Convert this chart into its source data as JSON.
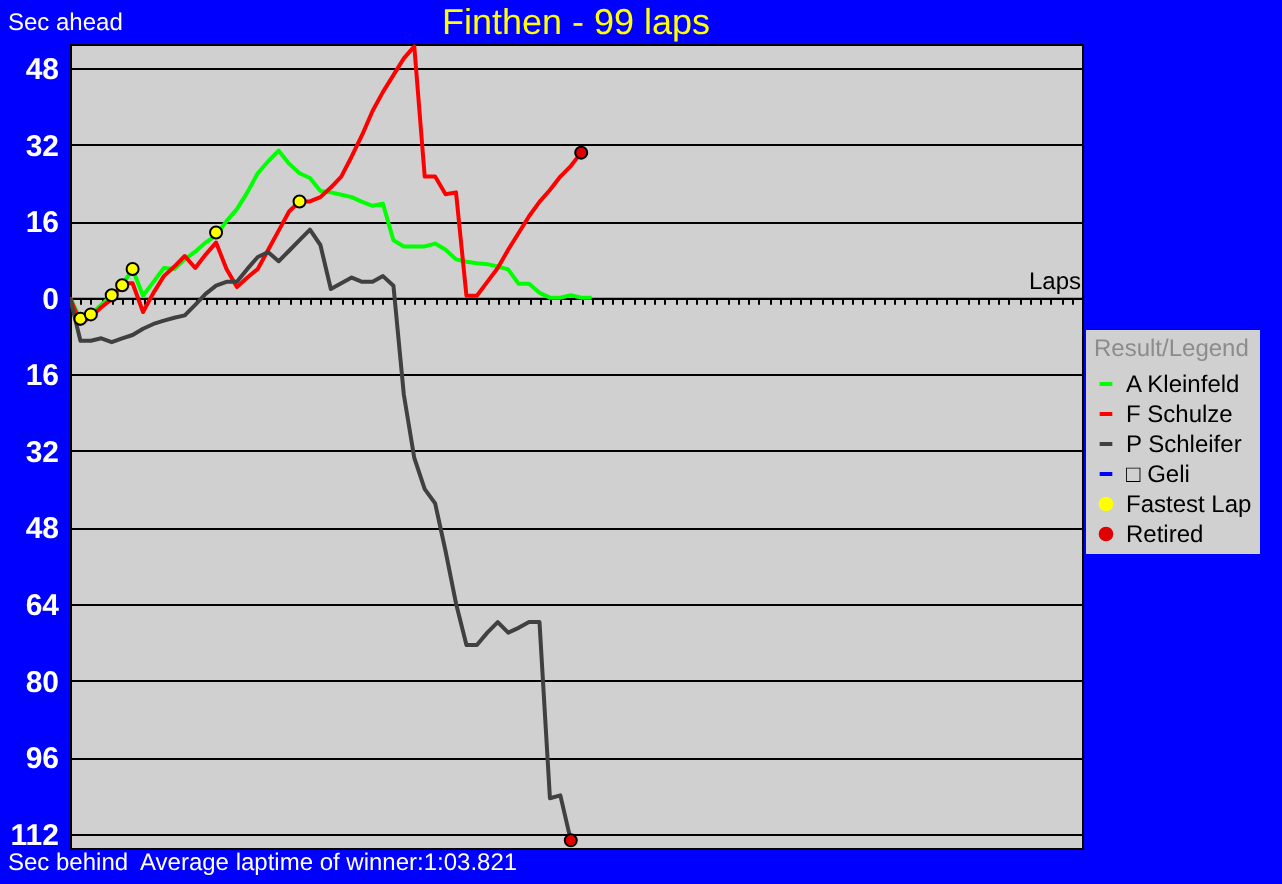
{
  "chart_data": {
    "type": "line",
    "title": "Finthen - 99 laps",
    "xlabel": "Laps",
    "legend_title": "Result/Legend",
    "legend": "right",
    "grid": "y",
    "tick_labels": "y",
    "line_style": "solid",
    "annotations": [
      "Sec ahead",
      "Sec behind",
      "Average laptime of winner:1:03.821"
    ],
    "categories": [
      null,
      null,
      null,
      null,
      null,
      null,
      null,
      null,
      null,
      null,
      null,
      null,
      null,
      null,
      null,
      null,
      null,
      null,
      null,
      null,
      null,
      null,
      null,
      null,
      null,
      null,
      null,
      null,
      null,
      null,
      null,
      null,
      null,
      null,
      null,
      null,
      null,
      null,
      null,
      null,
      null,
      null,
      null,
      null,
      null,
      null,
      null,
      null,
      null,
      null,
      null,
      null,
      null,
      null,
      null,
      null,
      null,
      null,
      null,
      null,
      null,
      null,
      null,
      null,
      null,
      null,
      null,
      null,
      null,
      null,
      null,
      null,
      null,
      null,
      null,
      null,
      null,
      null,
      null,
      null,
      null,
      null,
      null,
      null,
      null,
      null,
      null,
      null,
      null,
      null,
      null,
      null,
      null,
      null,
      null,
      null,
      null,
      null
    ],
    "ylim": [
      -115,
      53
    ],
    "yticks": [
      48,
      32,
      16,
      0,
      {
        "value": -16,
        "label": "16"
      },
      {
        "value": -32,
        "label": "32"
      },
      {
        "value": -48,
        "label": "48"
      },
      {
        "value": -64,
        "label": "64"
      },
      {
        "value": -80,
        "label": "80"
      },
      {
        "value": -96,
        "label": "96"
      },
      {
        "value": -112,
        "label": "112"
      }
    ],
    "series": [
      {
        "name": "A Kleinfeld",
        "color": "#00ff00",
        "values": [
          0,
          -4.5,
          -3.5,
          -1.5,
          0.5,
          2.6,
          6,
          0.4,
          3.3,
          6.2,
          6,
          8,
          9.6,
          11.5,
          13,
          16,
          18.5,
          22,
          26,
          28.5,
          30.7,
          28,
          26,
          25,
          22.3,
          22,
          21.5,
          21,
          20,
          19.2,
          19.6,
          12,
          10.7,
          10.7,
          10.7,
          11.3,
          10,
          8,
          7.5,
          7.2,
          7,
          6.5,
          5.9,
          2.9,
          2.9,
          1,
          0,
          0,
          0.5,
          0,
          0,
          null,
          null,
          null,
          null,
          null,
          null,
          null,
          null,
          null,
          null,
          null,
          null,
          null,
          null,
          null,
          null,
          null,
          null,
          null,
          null,
          null,
          null,
          null,
          null,
          null,
          null,
          null,
          null,
          null,
          null,
          null,
          null,
          null,
          null,
          null,
          null,
          null,
          null,
          null,
          null,
          null,
          null,
          null,
          null,
          null,
          null,
          null
        ]
      },
      {
        "name": "F Schulze",
        "color": "#ff0000",
        "values": [
          0,
          -5.5,
          -4,
          -2,
          -0.3,
          3,
          3,
          -3,
          1,
          4.5,
          6.5,
          8.7,
          6.2,
          9,
          11.5,
          6,
          2.2,
          4.2,
          6,
          10,
          14,
          18,
          20.1,
          20.1,
          21,
          23,
          25.3,
          29.5,
          34,
          39,
          43,
          46.5,
          50,
          52.5,
          25.3,
          25.3,
          21.6,
          22,
          0.4,
          0.4,
          3.3,
          6.2,
          10,
          13.5,
          17,
          20,
          22.5,
          25.3,
          27.5,
          30.3,
          null,
          null,
          null,
          null,
          null,
          null,
          null,
          null,
          null,
          null,
          null,
          null,
          null,
          null,
          null,
          null,
          null,
          null,
          null,
          null,
          null,
          null,
          null,
          null,
          null,
          null,
          null,
          null,
          null,
          null,
          null,
          null,
          null,
          null,
          null,
          null,
          null,
          null,
          null,
          null,
          null,
          null,
          null,
          null,
          null,
          null,
          null,
          null
        ]
      },
      {
        "name": "P Schleifer",
        "color": "#404040",
        "values": [
          0,
          -9,
          -9,
          -8.5,
          -9.3,
          -8.5,
          -7.8,
          -6.5,
          -5.5,
          -4.8,
          -4.2,
          -3.7,
          -1.5,
          0.8,
          2.5,
          3.3,
          3.3,
          6,
          8.5,
          9.5,
          7.6,
          9.8,
          12,
          14.2,
          11,
          1.8,
          3,
          4.2,
          3.3,
          3.3,
          4.5,
          2.5,
          -20.3,
          -33.5,
          -40,
          -43,
          -53,
          -63.9,
          -72.6,
          -72.6,
          -70,
          -67.8,
          -70,
          -69,
          -67.8,
          -67.8,
          -104.6,
          -104,
          -113.4,
          null,
          null,
          null,
          null,
          null,
          null,
          null,
          null,
          null,
          null,
          null,
          null,
          null,
          null,
          null,
          null,
          null,
          null,
          null,
          null,
          null,
          null,
          null,
          null,
          null,
          null,
          null,
          null,
          null,
          null,
          null,
          null,
          null,
          null,
          null,
          null,
          null,
          null,
          null,
          null,
          null,
          null,
          null,
          null,
          null,
          null,
          null,
          null,
          null
        ]
      },
      {
        "name": "□ Geli",
        "color": "#0000ff",
        "values": [
          null,
          null,
          null,
          null,
          null,
          null,
          null,
          null,
          null,
          null,
          null,
          null,
          null,
          null,
          null,
          null,
          null,
          null,
          null,
          null,
          null,
          null,
          null,
          null,
          null,
          null,
          null,
          null,
          null,
          null,
          null,
          null,
          null,
          null,
          null,
          null,
          null,
          null,
          null,
          null,
          null,
          null,
          null,
          null,
          null,
          null,
          null,
          null,
          null,
          null,
          null,
          null,
          null,
          null,
          null,
          null,
          null,
          null,
          null,
          null,
          null,
          null,
          null,
          null,
          null,
          null,
          null,
          null,
          null,
          null,
          null,
          null,
          null,
          null,
          null,
          null,
          null,
          null,
          null,
          null,
          null,
          null,
          null,
          null,
          null,
          null,
          null,
          null,
          null,
          null,
          null,
          null,
          null,
          null,
          null,
          null,
          null,
          null
        ]
      },
      {
        "name": "Fastest Lap",
        "color": "#ffff00",
        "type": "scatter",
        "marker": "circle",
        "values": [
          null,
          -4.4,
          -3.5,
          null,
          0.5,
          2.6,
          6,
          null,
          null,
          null,
          null,
          null,
          null,
          null,
          13.6,
          null,
          null,
          null,
          null,
          null,
          null,
          null,
          20.1,
          null,
          null,
          null,
          null,
          null,
          null,
          null,
          null,
          null,
          null,
          null,
          null,
          null,
          null,
          null,
          null,
          null,
          null,
          null,
          null,
          null,
          null,
          null,
          null,
          null,
          null,
          null,
          null,
          null,
          null,
          null,
          null,
          null,
          null,
          null,
          null,
          null,
          null,
          null,
          null,
          null,
          null,
          null,
          null,
          null,
          null,
          null,
          null,
          null,
          null,
          null,
          null,
          null,
          null,
          null,
          null,
          null,
          null,
          null,
          null,
          null,
          null,
          null,
          null,
          null,
          null,
          null,
          null,
          null,
          null,
          null,
          null,
          null,
          null,
          null
        ]
      },
      {
        "name": "Retired",
        "color": "#e00000",
        "type": "scatter",
        "marker": "circle",
        "values": [
          null,
          null,
          null,
          null,
          null,
          null,
          null,
          null,
          null,
          null,
          null,
          null,
          null,
          null,
          null,
          null,
          null,
          null,
          null,
          null,
          null,
          null,
          null,
          null,
          null,
          null,
          null,
          null,
          null,
          null,
          null,
          null,
          null,
          null,
          null,
          null,
          null,
          null,
          null,
          null,
          null,
          null,
          null,
          null,
          null,
          null,
          null,
          null,
          -113.4,
          30.3,
          null,
          null,
          null,
          null,
          null,
          null,
          null,
          null,
          null,
          null,
          null,
          null,
          null,
          null,
          null,
          null,
          null,
          null,
          null,
          null,
          null,
          null,
          null,
          null,
          null,
          null,
          null,
          null,
          null,
          null,
          null,
          null,
          null,
          null,
          null,
          null,
          null,
          null,
          null,
          null,
          null,
          null,
          null,
          null,
          null,
          null,
          null,
          null
        ]
      }
    ]
  }
}
